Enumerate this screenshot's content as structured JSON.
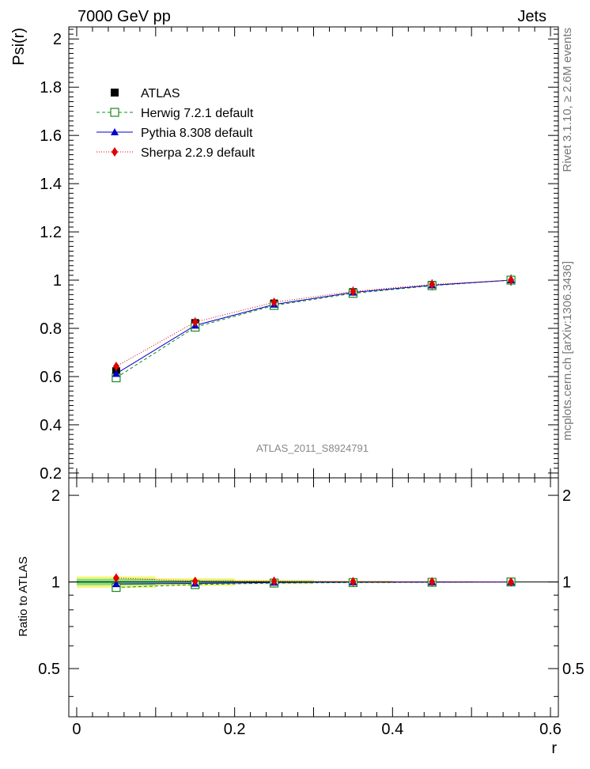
{
  "header": {
    "left": "7000 GeV pp",
    "right": "Jets"
  },
  "side_labels": {
    "top": "Rivet 3.1.10, ≥ 2.6M events",
    "bottom": "mcplots.cern.ch [arXiv:1306.3436]"
  },
  "analysis_tag": "ATLAS_2011_S8924791",
  "colors": {
    "ATLAS": "#000000",
    "Herwig": "#1a8a1a",
    "Pythia": "#0000cc",
    "Sherpa": "#dd0000",
    "band_inner": "#7fdd7f",
    "band_outer": "#f5f57a"
  },
  "chart_data": [
    {
      "type": "line",
      "panel": "main",
      "ylabel": "Psi(r)",
      "xlabel": "",
      "xlim": [
        -0.01,
        0.61
      ],
      "ylim": [
        0.18,
        2.05
      ],
      "yticks": [
        0.2,
        0.4,
        0.6,
        0.8,
        1,
        1.2,
        1.4,
        1.6,
        1.8,
        2
      ],
      "ytick_labels": [
        "0.2",
        "0.4",
        "0.6",
        "0.8",
        "1",
        "1.2",
        "1.4",
        "1.6",
        "1.8",
        "2"
      ],
      "x": [
        0.05,
        0.15,
        0.25,
        0.35,
        0.45,
        0.55
      ],
      "legend_position": "top-left",
      "series": [
        {
          "name": "ATLAS",
          "marker": "square",
          "values": [
            0.622,
            0.822,
            0.903,
            0.95,
            0.98,
            1.0
          ]
        },
        {
          "name": "Herwig 7.2.1 default",
          "marker": "open-square",
          "line": "dashed",
          "values": [
            0.595,
            0.805,
            0.895,
            0.945,
            0.977,
            1.0
          ]
        },
        {
          "name": "Pythia 8.308 default",
          "marker": "triangle",
          "line": "solid",
          "values": [
            0.612,
            0.812,
            0.899,
            0.949,
            0.979,
            1.0
          ]
        },
        {
          "name": "Sherpa 2.2.9 default",
          "marker": "diamond",
          "line": "dotted",
          "values": [
            0.642,
            0.826,
            0.908,
            0.953,
            0.982,
            1.0
          ]
        }
      ]
    },
    {
      "type": "line",
      "panel": "ratio",
      "ylabel": "Ratio to ATLAS",
      "xlabel": "r",
      "xlim": [
        -0.01,
        0.61
      ],
      "ylim": [
        0.34,
        2.3
      ],
      "log_y": true,
      "yticks": [
        0.5,
        1,
        2
      ],
      "ytick_labels": [
        "0.5",
        "1",
        "2"
      ],
      "xticks": [
        0,
        0.2,
        0.4,
        0.6
      ],
      "xtick_labels": [
        "0",
        "0.2",
        "0.4",
        "0.6"
      ],
      "x": [
        0.05,
        0.15,
        0.25,
        0.35,
        0.45,
        0.55
      ],
      "bins": [
        [
          0.0,
          0.1
        ],
        [
          0.1,
          0.2
        ],
        [
          0.2,
          0.3
        ],
        [
          0.3,
          0.4
        ],
        [
          0.4,
          0.5
        ],
        [
          0.5,
          0.6
        ]
      ],
      "band_outer": [
        0.045,
        0.03,
        0.018,
        0.01,
        0.005,
        0.003
      ],
      "band_inner": [
        0.025,
        0.015,
        0.009,
        0.005,
        0.003,
        0.002
      ],
      "series": [
        {
          "name": "Herwig 7.2.1 default",
          "values": [
            0.957,
            0.979,
            0.991,
            0.995,
            0.997,
            1.0
          ]
        },
        {
          "name": "Pythia 8.308 default",
          "values": [
            0.984,
            0.988,
            0.996,
            0.999,
            0.999,
            1.0
          ]
        },
        {
          "name": "Sherpa 2.2.9 default",
          "values": [
            1.032,
            1.005,
            1.006,
            1.003,
            1.002,
            1.0
          ]
        }
      ]
    }
  ]
}
